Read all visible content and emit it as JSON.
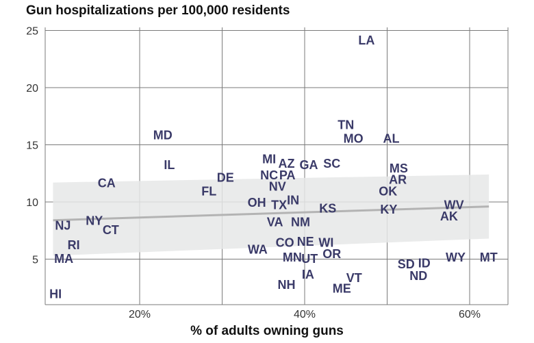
{
  "chart_data": {
    "type": "scatter",
    "title": "Gun hospitalizations per 100,000 residents",
    "xlabel": "% of adults owning guns",
    "ylabel": "",
    "xlim": [
      8.5,
      63.5
    ],
    "ylim": [
      0.9,
      26.0
    ],
    "x_ticks": [
      20,
      30,
      40,
      50,
      60
    ],
    "x_tick_labels": [
      "20%",
      "",
      "40%",
      "",
      "60%"
    ],
    "y_ticks": [
      5,
      10,
      15,
      20,
      25
    ],
    "y_tick_labels": [
      "5",
      "10",
      "15",
      "20",
      "25"
    ],
    "grid": true,
    "point_color": "#3a3a68",
    "trend": {
      "x_range": [
        9.5,
        63.5
      ],
      "y_start": 8.4,
      "y_end": 9.6,
      "band_upper_start": 11.7,
      "band_upper_end": 12.4,
      "band_lower_start": 5.3,
      "band_lower_end": 6.8,
      "line_color": "#b3b3b3",
      "band_color": "#e6e7e8"
    },
    "points": [
      {
        "label": "LA",
        "x": 47.5,
        "y": 24.2
      },
      {
        "label": "TN",
        "x": 45.0,
        "y": 16.8
      },
      {
        "label": "MO",
        "x": 45.9,
        "y": 15.6
      },
      {
        "label": "AL",
        "x": 50.5,
        "y": 15.6
      },
      {
        "label": "MD",
        "x": 22.8,
        "y": 15.9
      },
      {
        "label": "IL",
        "x": 23.6,
        "y": 13.3
      },
      {
        "label": "MI",
        "x": 35.7,
        "y": 13.8
      },
      {
        "label": "AZ",
        "x": 37.8,
        "y": 13.4
      },
      {
        "label": "GA",
        "x": 40.5,
        "y": 13.3
      },
      {
        "label": "SC",
        "x": 43.3,
        "y": 13.4
      },
      {
        "label": "MS",
        "x": 51.4,
        "y": 13.0
      },
      {
        "label": "NC",
        "x": 35.7,
        "y": 12.4
      },
      {
        "label": "PA",
        "x": 37.9,
        "y": 12.4
      },
      {
        "label": "DE",
        "x": 30.4,
        "y": 12.2
      },
      {
        "label": "AR",
        "x": 51.3,
        "y": 12.0
      },
      {
        "label": "CA",
        "x": 16.0,
        "y": 11.7
      },
      {
        "label": "NV",
        "x": 36.7,
        "y": 11.4
      },
      {
        "label": "FL",
        "x": 28.4,
        "y": 11.0
      },
      {
        "label": "OK",
        "x": 50.1,
        "y": 11.0
      },
      {
        "label": "OH",
        "x": 34.2,
        "y": 10.0
      },
      {
        "label": "TX",
        "x": 36.9,
        "y": 9.8
      },
      {
        "label": "IN",
        "x": 38.6,
        "y": 10.2
      },
      {
        "label": "KS",
        "x": 42.8,
        "y": 9.5
      },
      {
        "label": "KY",
        "x": 50.2,
        "y": 9.4
      },
      {
        "label": "WV",
        "x": 58.1,
        "y": 9.8
      },
      {
        "label": "AK",
        "x": 57.5,
        "y": 8.8
      },
      {
        "label": "VA",
        "x": 36.4,
        "y": 8.3
      },
      {
        "label": "NM",
        "x": 39.5,
        "y": 8.3
      },
      {
        "label": "NY",
        "x": 14.5,
        "y": 8.4
      },
      {
        "label": "NJ",
        "x": 10.7,
        "y": 8.0
      },
      {
        "label": "CT",
        "x": 16.5,
        "y": 7.6
      },
      {
        "label": "CO",
        "x": 37.6,
        "y": 6.5
      },
      {
        "label": "NE",
        "x": 40.1,
        "y": 6.6
      },
      {
        "label": "WI",
        "x": 42.6,
        "y": 6.5
      },
      {
        "label": "WA",
        "x": 34.3,
        "y": 5.9
      },
      {
        "label": "OR",
        "x": 43.3,
        "y": 5.5
      },
      {
        "label": "MN",
        "x": 38.5,
        "y": 5.2
      },
      {
        "label": "UT",
        "x": 40.6,
        "y": 5.1
      },
      {
        "label": "RI",
        "x": 12.0,
        "y": 6.3
      },
      {
        "label": "MA",
        "x": 10.8,
        "y": 5.1
      },
      {
        "label": "WY",
        "x": 58.3,
        "y": 5.2
      },
      {
        "label": "MT",
        "x": 62.3,
        "y": 5.2
      },
      {
        "label": "SD",
        "x": 52.3,
        "y": 4.6
      },
      {
        "label": "ID",
        "x": 54.5,
        "y": 4.7
      },
      {
        "label": "ND",
        "x": 53.8,
        "y": 3.6
      },
      {
        "label": "IA",
        "x": 40.4,
        "y": 3.7
      },
      {
        "label": "VT",
        "x": 46.0,
        "y": 3.4
      },
      {
        "label": "NH",
        "x": 37.8,
        "y": 2.8
      },
      {
        "label": "ME",
        "x": 44.5,
        "y": 2.5
      },
      {
        "label": "HI",
        "x": 9.8,
        "y": 2.0
      }
    ]
  }
}
